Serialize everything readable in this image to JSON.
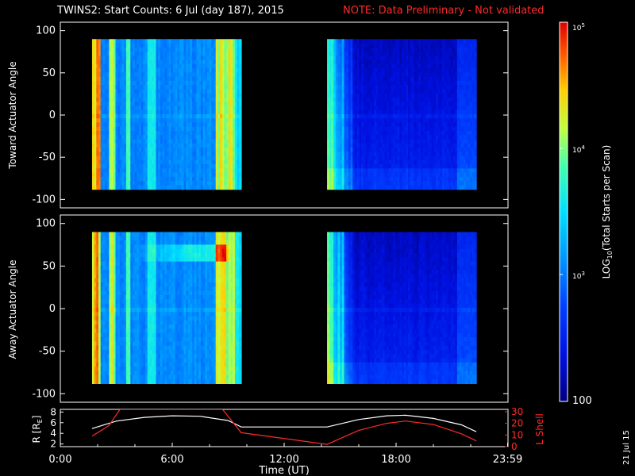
{
  "title": {
    "main": "TWINS2: Start Counts:  6 Jul (day 187), 2015",
    "note": "NOTE: Data Preliminary - Not validated",
    "note_color": "#ff2a2a"
  },
  "date_stamp": "21 Jul 15",
  "chart_data": [
    {
      "type": "heatmap",
      "panel": "top",
      "ylabel": "Toward Actuator Angle",
      "ylim": [
        -110,
        110
      ],
      "yticks": [
        "100",
        "50",
        "0",
        "-50",
        "-100"
      ],
      "ytick_values": [
        100,
        50,
        0,
        -50,
        -100
      ],
      "x_range_hours": [
        0,
        24
      ],
      "data_blocks_hours": [
        [
          1.7,
          9.7
        ],
        [
          14.3,
          22.3
        ]
      ],
      "data_angle_range": [
        -88,
        90
      ],
      "color_scale": "log",
      "background_level_block1": 1000,
      "background_level_block2": 300
    },
    {
      "type": "heatmap",
      "panel": "bottom",
      "ylabel": "Away Actuator Angle",
      "ylim": [
        -110,
        110
      ],
      "yticks": [
        "100",
        "50",
        "0",
        "-50",
        "-100"
      ],
      "ytick_values": [
        100,
        50,
        0,
        -50,
        -100
      ],
      "x_range_hours": [
        0,
        24
      ],
      "data_blocks_hours": [
        [
          1.7,
          9.7
        ],
        [
          14.3,
          22.3
        ]
      ],
      "data_angle_range": [
        -88,
        90
      ],
      "color_scale": "log",
      "background_level_block1": 1000,
      "background_level_block2": 300
    },
    {
      "type": "line",
      "panel": "orbit",
      "xlabel": "Time (UT)",
      "xticks": [
        "0:00",
        "6:00",
        "12:00",
        "18:00",
        "23:59"
      ],
      "xtick_values": [
        0,
        6,
        12,
        18,
        23.98
      ],
      "left_axis": {
        "label": "R [RE]",
        "ticks": [
          "8",
          "6",
          "4",
          "2"
        ],
        "tick_values": [
          8,
          6,
          4,
          2
        ],
        "ylim": [
          1.5,
          8.5
        ]
      },
      "right_axis": {
        "label": "L Shell",
        "ticks": [
          "30",
          "20",
          "10",
          "0"
        ],
        "tick_values": [
          30,
          20,
          10,
          0
        ],
        "ylim": [
          0,
          32
        ],
        "color": "#ff2a2a"
      },
      "series": [
        {
          "name": "R [RE]",
          "axis": "left",
          "color": "#ffffff",
          "x": [
            1.7,
            3,
            4.5,
            6,
            7.5,
            9,
            9.7,
            14.3,
            16,
            17.5,
            18.5,
            20,
            21.5,
            22.3
          ],
          "y": [
            4.9,
            6.3,
            7.0,
            7.3,
            7.2,
            6.4,
            5.2,
            5.2,
            6.6,
            7.3,
            7.4,
            6.8,
            5.6,
            4.3
          ]
        },
        {
          "name": "L Shell",
          "axis": "right",
          "color": "#ff2a2a",
          "x": [
            1.7,
            2.6,
            3.2,
            8.7,
            9.7,
            14.3,
            16,
            17.5,
            18.5,
            20,
            21.5,
            22.3
          ],
          "y": [
            9,
            18,
            32,
            32,
            12,
            2,
            14,
            20,
            22,
            19,
            11,
            5
          ]
        }
      ]
    },
    {
      "type": "heatmap",
      "panel": "colorbar",
      "label": "LOG10(Total Starts per Scan)",
      "scale": "log",
      "range": [
        100,
        100000
      ],
      "ticks": [
        "10^5",
        "10^4",
        "10^3",
        "100"
      ],
      "tick_values": [
        100000,
        10000,
        1000,
        100
      ]
    }
  ],
  "colorbar_labels": {
    "label_main": "LOG",
    "label_sub": "10",
    "label_rest": "(Total Starts per Scan)",
    "tick_1e5": "5",
    "tick_1e4": "4",
    "tick_1e3": "3",
    "tick_base": "10",
    "tick_100": "100"
  },
  "orbit_labels": {
    "r_main": "R [R",
    "r_sub": "E",
    "r_close": "]",
    "l_shell": "L Shell"
  }
}
